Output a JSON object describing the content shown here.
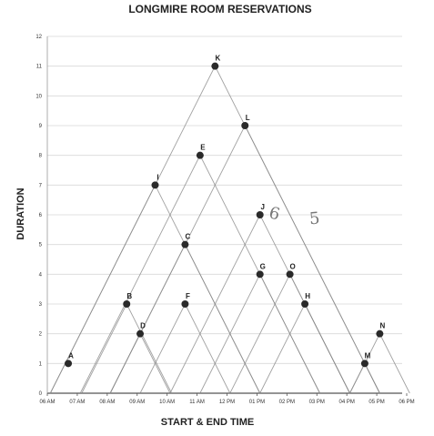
{
  "chart_data": {
    "type": "scatter",
    "title": "LONGMIRE ROOM RESERVATIONS",
    "xlabel": "START & END TIME",
    "ylabel": "DURATION",
    "x_ticks": [
      "06 AM",
      "07 AM",
      "08 AM",
      "09 AM",
      "10 AM",
      "11 AM",
      "12 PM",
      "01 PM",
      "02 PM",
      "03 PM",
      "04 PM",
      "05 PM",
      "06 PM"
    ],
    "xlim": [
      0,
      12
    ],
    "ylim": [
      0,
      12
    ],
    "y_ticks": [
      0,
      1,
      2,
      3,
      4,
      5,
      6,
      7,
      8,
      9,
      10,
      11,
      12
    ],
    "grid": "horizontal",
    "points": [
      {
        "label": "A",
        "x": 0.7,
        "y": 1
      },
      {
        "label": "B",
        "x": 2.65,
        "y": 3
      },
      {
        "label": "D",
        "x": 3.1,
        "y": 2
      },
      {
        "label": "I",
        "x": 3.6,
        "y": 7
      },
      {
        "label": "F",
        "x": 4.6,
        "y": 3
      },
      {
        "label": "C",
        "x": 4.6,
        "y": 5
      },
      {
        "label": "E",
        "x": 5.1,
        "y": 8
      },
      {
        "label": "K",
        "x": 5.6,
        "y": 11
      },
      {
        "label": "L",
        "x": 6.6,
        "y": 9
      },
      {
        "label": "J",
        "x": 7.1,
        "y": 6
      },
      {
        "label": "G",
        "x": 7.1,
        "y": 4
      },
      {
        "label": "O",
        "x": 8.1,
        "y": 4
      },
      {
        "label": "H",
        "x": 8.6,
        "y": 3
      },
      {
        "label": "M",
        "x": 10.6,
        "y": 1
      },
      {
        "label": "N",
        "x": 11.1,
        "y": 2
      }
    ],
    "handwritten_marks": [
      "6",
      "5"
    ]
  }
}
